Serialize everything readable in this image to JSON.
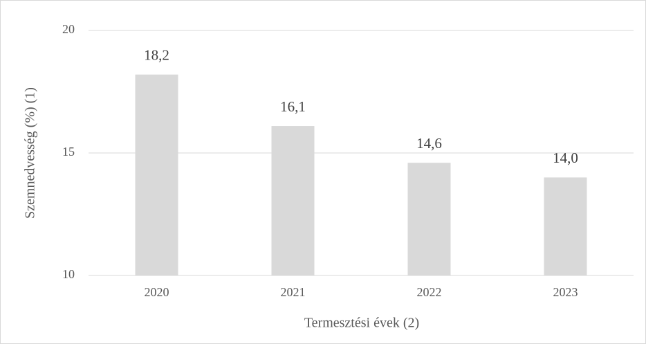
{
  "chart_data": {
    "type": "bar",
    "xlabel": "Termesztési évek (2)",
    "ylabel": "Szemnedvesség (%) (1)",
    "categories": [
      "2020",
      "2021",
      "2022",
      "2023"
    ],
    "values": [
      18.2,
      16.1,
      14.6,
      14.0
    ],
    "value_labels": [
      "18,2",
      "16,1",
      "14,6",
      "14,0"
    ],
    "color": "#d9d9d9",
    "ylim": [
      10,
      20
    ],
    "yticks": [
      10,
      15,
      20
    ],
    "grid": true
  }
}
